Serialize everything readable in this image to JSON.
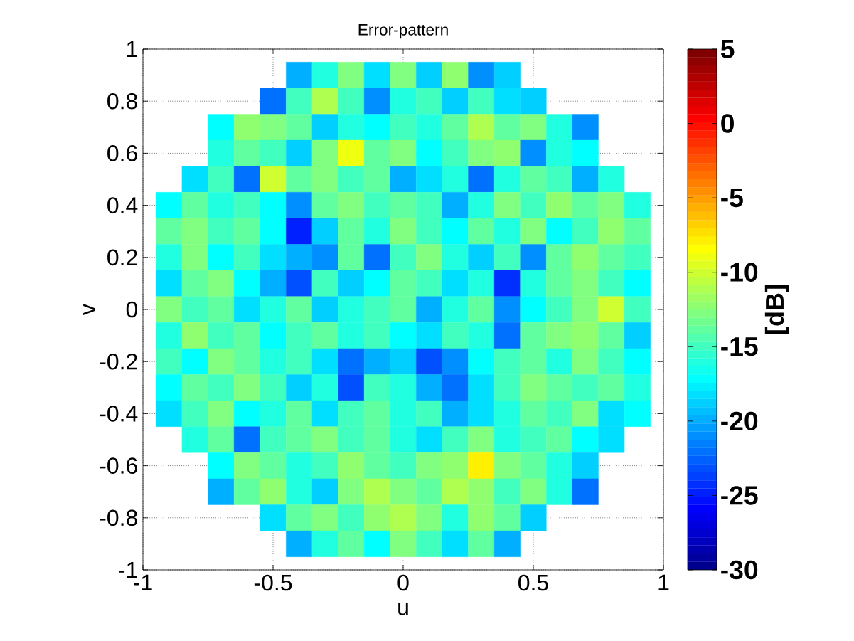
{
  "chart_data": {
    "type": "heatmap",
    "title": "Error-pattern",
    "xlabel": "u",
    "ylabel": "v",
    "clabel": "[dB]",
    "categories": [
      "-1",
      null,
      null,
      null,
      null,
      "-0.5",
      null,
      null,
      null,
      null,
      "0",
      null,
      null,
      null,
      null,
      "0.5",
      null,
      null,
      null,
      null,
      "1"
    ],
    "y_categories": [
      "1",
      null,
      "0.8",
      null,
      "0.6",
      null,
      "0.4",
      null,
      "0.2",
      null,
      "0",
      null,
      "-0.2",
      null,
      "-0.4",
      null,
      "-0.6",
      null,
      "-0.8",
      null,
      "-1"
    ],
    "clim": [
      -30,
      5
    ],
    "cticks": [
      -30,
      -25,
      -20,
      -15,
      -10,
      -5,
      0,
      5
    ],
    "grid": true,
    "cells": [
      [
        null,
        null,
        null,
        null,
        null,
        null,
        null,
        null,
        null,
        null,
        null,
        null,
        null,
        null,
        null,
        null,
        null,
        null,
        null,
        null,
        null
      ],
      [
        null,
        null,
        null,
        null,
        null,
        null,
        -20,
        -16,
        -13,
        -18,
        -13,
        -19,
        -12,
        -21,
        -19,
        null,
        null,
        null,
        null,
        null,
        null
      ],
      [
        null,
        null,
        null,
        null,
        null,
        -22,
        -15,
        -11,
        -15,
        -21,
        -16,
        -15,
        -19,
        -15,
        -18,
        -19,
        null,
        null,
        null,
        null,
        null
      ],
      [
        null,
        null,
        null,
        -17,
        -12,
        -13,
        -14,
        -19,
        -16,
        -17,
        -15,
        -16,
        -14,
        -11,
        -14,
        -13,
        -16,
        -21,
        null,
        null,
        null
      ],
      [
        null,
        null,
        null,
        -16,
        -14,
        -15,
        -19,
        -13,
        -9,
        -14,
        -13,
        -17,
        -15,
        -13,
        -12,
        -21,
        -16,
        -17,
        null,
        null,
        null
      ],
      [
        null,
        null,
        -18,
        -15,
        -22,
        -10,
        -14,
        -13,
        -15,
        -14,
        -20,
        -18,
        -16,
        -22,
        -16,
        -14,
        -15,
        -20,
        -16,
        null,
        null
      ],
      [
        null,
        -17,
        -14,
        -16,
        -15,
        -17,
        -21,
        -14,
        -13,
        -15,
        -14,
        -15,
        -20,
        -16,
        -13,
        -15,
        -12,
        -14,
        -13,
        -16,
        null
      ],
      [
        null,
        -14,
        -13,
        -15,
        -14,
        -17,
        -25,
        -19,
        -14,
        -16,
        -13,
        -15,
        -17,
        -14,
        -16,
        -13,
        -17,
        -15,
        -12,
        -14,
        null
      ],
      [
        null,
        -16,
        -13,
        -17,
        -15,
        -18,
        -20,
        -21,
        -14,
        -22,
        -15,
        -13,
        -16,
        -19,
        -15,
        -21,
        -14,
        -12,
        -14,
        -15,
        null
      ],
      [
        null,
        -18,
        -14,
        -13,
        -17,
        -20,
        -23,
        -15,
        -19,
        -17,
        -14,
        -15,
        -18,
        -16,
        -24,
        -16,
        -14,
        -13,
        -15,
        -17,
        null
      ],
      [
        null,
        -13,
        -15,
        -14,
        -18,
        -16,
        -14,
        -19,
        -16,
        -15,
        -14,
        -20,
        -16,
        -14,
        -21,
        -17,
        -15,
        -13,
        -10,
        -15,
        null
      ],
      [
        null,
        -16,
        -12,
        -15,
        -14,
        -17,
        -15,
        -14,
        -16,
        -15,
        -17,
        -18,
        -15,
        -16,
        -22,
        -14,
        -13,
        -12,
        -14,
        -19,
        null
      ],
      [
        null,
        -15,
        -17,
        -13,
        -14,
        -16,
        -15,
        -18,
        -22,
        -20,
        -19,
        -23,
        -21,
        -17,
        -15,
        -14,
        -16,
        -13,
        -15,
        -17,
        null
      ],
      [
        null,
        -17,
        -14,
        -15,
        -13,
        -15,
        -19,
        -16,
        -23,
        -15,
        -16,
        -20,
        -22,
        -18,
        -15,
        -13,
        -14,
        -15,
        -14,
        -16,
        null
      ],
      [
        null,
        -18,
        -15,
        -13,
        -17,
        -16,
        -14,
        -18,
        -15,
        -14,
        -16,
        -15,
        -20,
        -18,
        -16,
        -14,
        -15,
        -13,
        -18,
        -17,
        null
      ],
      [
        null,
        null,
        -16,
        -14,
        -22,
        -15,
        -14,
        -13,
        -15,
        -14,
        -16,
        -18,
        -15,
        -13,
        -16,
        -15,
        -14,
        -17,
        -18,
        null,
        null
      ],
      [
        null,
        null,
        null,
        -17,
        -13,
        -14,
        -16,
        -15,
        -12,
        -14,
        -15,
        -13,
        -12,
        -8,
        -13,
        -14,
        -16,
        -19,
        null,
        null,
        null
      ],
      [
        null,
        null,
        null,
        -20,
        -14,
        -12,
        -16,
        -19,
        -13,
        -11,
        -13,
        -14,
        -11,
        -12,
        -15,
        -13,
        -16,
        -22,
        null,
        null,
        null
      ],
      [
        null,
        null,
        null,
        null,
        null,
        -18,
        -14,
        -13,
        -15,
        -12,
        -11,
        -13,
        -16,
        -12,
        -14,
        -19,
        null,
        null,
        null,
        null,
        null
      ],
      [
        null,
        null,
        null,
        null,
        null,
        null,
        -20,
        -16,
        -14,
        -17,
        -13,
        -15,
        -18,
        -14,
        -20,
        null,
        null,
        null,
        null,
        null,
        null
      ],
      [
        null,
        null,
        null,
        null,
        null,
        null,
        null,
        null,
        null,
        null,
        null,
        null,
        null,
        null,
        null,
        null,
        null,
        null,
        null,
        null,
        null
      ]
    ]
  }
}
